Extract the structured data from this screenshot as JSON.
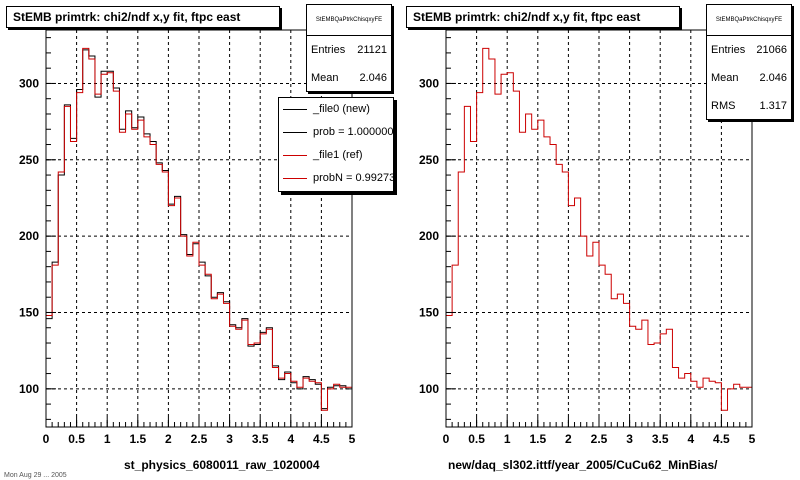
{
  "footer_text": "Mon Aug 29 ... 2005",
  "chart_data": [
    {
      "type": "line",
      "title": "StEMB primtrk: chi2/ndf x,y fit, ftpc east",
      "xlabel": "st_physics_6080011_raw_1020004",
      "ylabel": "",
      "xlim": [
        0,
        5
      ],
      "ylim": [
        75,
        335
      ],
      "xticks": [
        "0",
        "0.5",
        "1",
        "1.5",
        "2",
        "2.5",
        "3",
        "3.5",
        "4",
        "4.5",
        "5"
      ],
      "yticks": [
        "100",
        "150",
        "200",
        "250",
        "300"
      ],
      "grid": true,
      "stats": {
        "name": "StEMBQaPtrkChisqxyFE",
        "entries_label": "Entries",
        "entries": "21121",
        "mean_label": "Mean",
        "mean": "2.046"
      },
      "legend": {
        "placement": "top-right",
        "entries": [
          {
            "label": "_file0 (new)",
            "color": "#000000"
          },
          {
            "label": "prob = 1.000000",
            "color": "#000000"
          },
          {
            "label": "_file1 (ref)",
            "color": "#cc0000"
          },
          {
            "label": "probN = 0.992732",
            "color": "#cc0000"
          }
        ]
      },
      "x": [
        0,
        0.1,
        0.2,
        0.3,
        0.4,
        0.5,
        0.6,
        0.7,
        0.8,
        0.9,
        1.0,
        1.1,
        1.2,
        1.3,
        1.4,
        1.5,
        1.6,
        1.7,
        1.8,
        1.9,
        2.0,
        2.1,
        2.2,
        2.3,
        2.4,
        2.5,
        2.6,
        2.7,
        2.8,
        2.9,
        3.0,
        3.1,
        3.2,
        3.3,
        3.4,
        3.5,
        3.6,
        3.7,
        3.8,
        3.9,
        4.0,
        4.1,
        4.2,
        4.3,
        4.4,
        4.5,
        4.6,
        4.7,
        4.8,
        4.9,
        5.0
      ],
      "series": [
        {
          "name": "_file0 (new)",
          "color": "#000000",
          "values": [
            146,
            183,
            240,
            286,
            264,
            296,
            322,
            318,
            291,
            308,
            308,
            297,
            270,
            282,
            271,
            278,
            267,
            262,
            248,
            243,
            221,
            226,
            201,
            188,
            195,
            183,
            174,
            160,
            163,
            157,
            142,
            140,
            146,
            128,
            129,
            137,
            140,
            115,
            106,
            111,
            104,
            100,
            108,
            106,
            103,
            87,
            101,
            102,
            102,
            100,
            100
          ]
        },
        {
          "name": "_file1 (ref)",
          "color": "#cc0000",
          "values": [
            148,
            181,
            242,
            285,
            262,
            294,
            323,
            316,
            293,
            306,
            307,
            295,
            268,
            280,
            270,
            276,
            265,
            260,
            247,
            242,
            220,
            225,
            200,
            187,
            196,
            181,
            175,
            159,
            162,
            156,
            141,
            139,
            145,
            129,
            130,
            136,
            139,
            114,
            107,
            110,
            105,
            101,
            107,
            105,
            104,
            86,
            100,
            103,
            101,
            101,
            101
          ]
        }
      ]
    },
    {
      "type": "line",
      "title": "StEMB primtrk: chi2/ndf x,y fit, ftpc east",
      "xlabel": "new/daq_sl302.ittf/year_2005/CuCu62_MinBias/",
      "ylabel": "",
      "xlim": [
        0,
        5
      ],
      "ylim": [
        75,
        335
      ],
      "xticks": [
        "0",
        "0.5",
        "1",
        "1.5",
        "2",
        "2.5",
        "3",
        "3.5",
        "4",
        "4.5",
        "5"
      ],
      "yticks": [
        "100",
        "150",
        "200",
        "250",
        "300"
      ],
      "grid": true,
      "stats": {
        "name": "StEMBQaPtrkChisqxyFE",
        "entries_label": "Entries",
        "entries": "21066",
        "mean_label": "Mean",
        "mean": "2.046",
        "rms_label": "RMS",
        "rms": "1.317"
      },
      "series": [
        {
          "name": "",
          "color": "#cc0000",
          "values": [
            148,
            181,
            242,
            285,
            262,
            294,
            323,
            316,
            293,
            306,
            307,
            295,
            268,
            280,
            270,
            276,
            265,
            260,
            247,
            242,
            220,
            225,
            200,
            187,
            196,
            181,
            175,
            159,
            162,
            156,
            141,
            139,
            145,
            129,
            130,
            136,
            139,
            114,
            107,
            110,
            105,
            101,
            107,
            105,
            104,
            86,
            100,
            103,
            101,
            101,
            101
          ]
        }
      ]
    }
  ]
}
